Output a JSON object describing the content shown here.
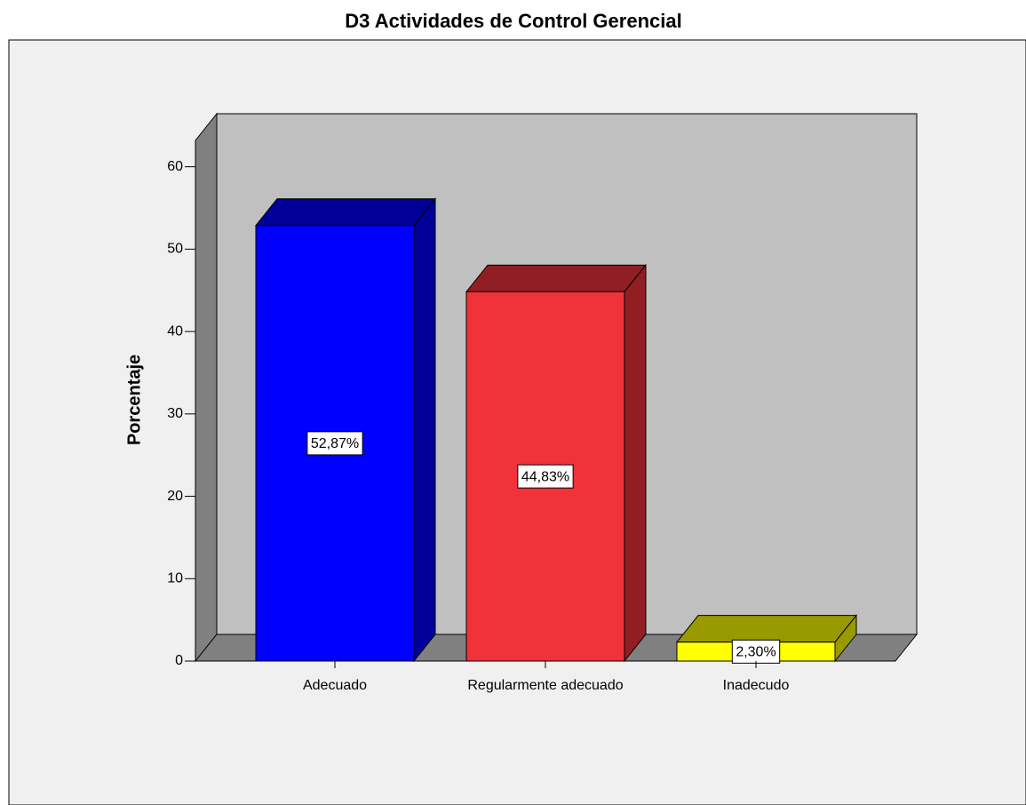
{
  "chart_data": {
    "type": "bar3d",
    "title": "D3 Actividades de Control Gerencial",
    "ylabel": "Porcentaje",
    "categories": [
      "Adecuado",
      "Regularmente adecuado",
      "Inadecudo"
    ],
    "values": [
      52.87,
      44.83,
      2.3
    ],
    "value_labels": [
      "52,87%",
      "44,83%",
      "2,30%"
    ],
    "colors": [
      "#0000ff",
      "#f0323a",
      "#ffff00"
    ],
    "ylim": [
      0,
      63.2
    ],
    "yticks": [
      0,
      10,
      20,
      30,
      40,
      50,
      60
    ]
  }
}
